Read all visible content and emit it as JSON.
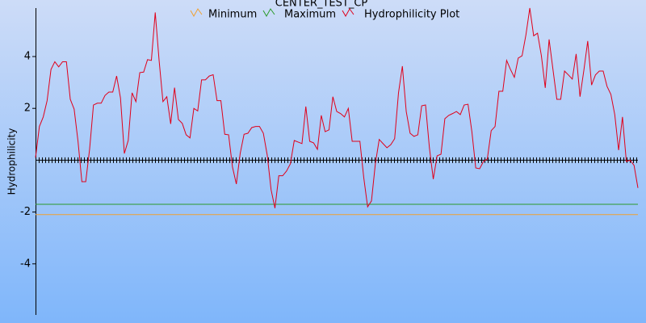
{
  "chart_data": {
    "type": "line",
    "title": "CENTER_TEST_CP",
    "y_label": "Hydrophilicity",
    "ylim": [
      -5.97,
      5.87
    ],
    "yticks": [
      -4,
      -2,
      2,
      4
    ],
    "series": [
      {
        "name": "Minimum",
        "color": "#f0a030",
        "value": -2.1
      },
      {
        "name": "Maximum",
        "color": "#2a9a2a",
        "value": -1.7
      },
      {
        "name": "Hydrophilicity Plot",
        "color": "#e0001a",
        "values": [
          0.1,
          1.3,
          1.67,
          2.3,
          3.5,
          3.8,
          3.6,
          3.8,
          3.8,
          2.35,
          1.97,
          0.73,
          -0.83,
          -0.83,
          0.42,
          2.13,
          2.2,
          2.2,
          2.5,
          2.63,
          2.63,
          3.25,
          2.4,
          0.26,
          0.76,
          2.6,
          2.26,
          3.38,
          3.4,
          3.88,
          3.85,
          5.7,
          3.85,
          2.26,
          2.45,
          1.4,
          2.8,
          1.57,
          1.42,
          0.98,
          0.86,
          2.0,
          1.9,
          3.1,
          3.1,
          3.25,
          3.3,
          2.3,
          2.3,
          1.0,
          0.98,
          -0.26,
          -0.92,
          0.26,
          1.0,
          1.04,
          1.26,
          1.3,
          1.3,
          1.04,
          0.2,
          -1.14,
          -1.85,
          -0.6,
          -0.6,
          -0.42,
          -0.14,
          0.76,
          0.7,
          0.64,
          2.07,
          0.73,
          0.67,
          0.42,
          1.73,
          1.1,
          1.17,
          2.45,
          1.88,
          1.8,
          1.67,
          2.0,
          0.73,
          0.73,
          0.73,
          -0.67,
          -1.8,
          -1.57,
          -0.14,
          0.8,
          0.64,
          0.48,
          0.6,
          0.83,
          2.6,
          3.63,
          1.88,
          1.04,
          0.92,
          0.98,
          2.1,
          2.13,
          0.48,
          -0.73,
          0.17,
          0.23,
          1.6,
          1.73,
          1.8,
          1.88,
          1.76,
          2.13,
          2.16,
          1.1,
          -0.3,
          -0.33,
          -0.05,
          0.05,
          1.14,
          1.3,
          2.66,
          2.66,
          3.85,
          3.5,
          3.2,
          3.94,
          4.03,
          4.84,
          5.87,
          4.8,
          4.9,
          4.03,
          2.79,
          4.66,
          3.5,
          2.35,
          2.35,
          3.44,
          3.29,
          3.13,
          4.1,
          2.45,
          3.47,
          4.6,
          2.9,
          3.29,
          3.44,
          3.44,
          2.85,
          2.54,
          1.76,
          0.39,
          1.67,
          -0.05,
          0,
          -0.2,
          -1.07
        ]
      }
    ]
  }
}
